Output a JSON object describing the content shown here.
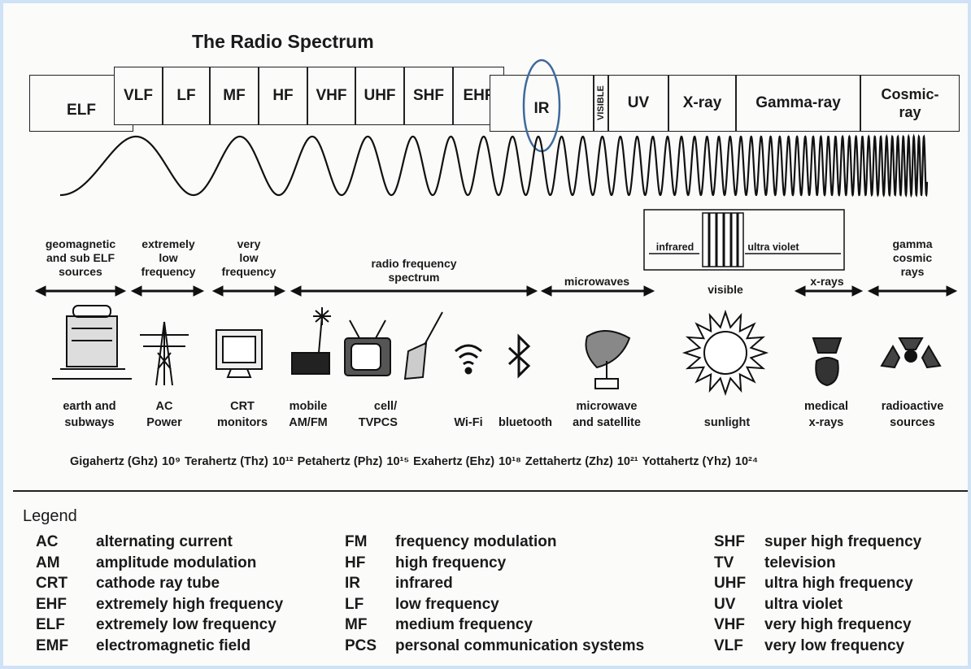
{
  "title": "The Radio Spectrum",
  "bands": [
    "ELF",
    "VLF",
    "LF",
    "MF",
    "HF",
    "VHF",
    "UHF",
    "SHF",
    "EHF",
    "IR",
    "VISIBLE",
    "UV",
    "X-ray",
    "Gamma-ray",
    "Cosmic-\nray"
  ],
  "ranges": [
    "geomagnetic\nand sub ELF\nsources",
    "extremely\nlow\nfrequency",
    "very\nlow\nfrequency",
    "radio frequency\nspectrum",
    "microwaves",
    "visible",
    "x-rays",
    "gamma\ncosmic\nrays"
  ],
  "light_box": [
    "infrared",
    "ultra violet"
  ],
  "sources": [
    "earth and\nsubways",
    "AC\nPower",
    "CRT\nmonitors",
    "mobile\nAM/FM",
    "TV",
    "cell/\nPCS",
    "Wi-Fi",
    "bluetooth",
    "microwave\nand satellite",
    "sunlight",
    "medical\nx-rays",
    "radioactive\nsources"
  ],
  "frequency_scale": [
    {
      "unit": "Gigahertz (Ghz)",
      "power": "10⁹"
    },
    {
      "unit": "Terahertz (Thz)",
      "power": "10¹²"
    },
    {
      "unit": "Petahertz (Phz)",
      "power": "10¹⁵"
    },
    {
      "unit": "Exahertz (Ehz)",
      "power": "10¹⁸"
    },
    {
      "unit": "Zettahertz (Zhz)",
      "power": "10²¹"
    },
    {
      "unit": "Yottahertz (Yhz)",
      "power": "10²⁴"
    }
  ],
  "legend": {
    "title": "Legend",
    "columns": [
      [
        [
          "AC",
          "alternating current"
        ],
        [
          "AM",
          "amplitude modulation"
        ],
        [
          "CRT",
          "cathode ray tube"
        ],
        [
          "EHF",
          "extremely high frequency"
        ],
        [
          "ELF",
          "extremely low frequency"
        ],
        [
          "EMF",
          "electromagnetic field"
        ]
      ],
      [
        [
          "FM",
          "frequency modulation"
        ],
        [
          "HF",
          "high frequency"
        ],
        [
          "IR",
          "infrared"
        ],
        [
          "LF",
          "low frequency"
        ],
        [
          "MF",
          "medium frequency"
        ],
        [
          "PCS",
          "personal communication systems"
        ]
      ],
      [
        [
          "SHF",
          "super high frequency"
        ],
        [
          "TV",
          "television"
        ],
        [
          "UHF",
          "ultra high frequency"
        ],
        [
          "UV",
          "ultra violet"
        ],
        [
          "VHF",
          "very high frequency"
        ],
        [
          "VLF",
          "very low frequency"
        ]
      ]
    ]
  }
}
